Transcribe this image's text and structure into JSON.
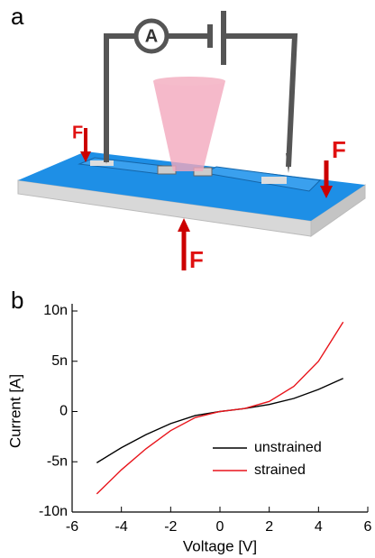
{
  "panel_labels": [
    "a",
    "b"
  ],
  "diagram": {
    "ammeter": "A",
    "forces": [
      "F",
      "F",
      "F"
    ]
  },
  "chart_data": {
    "type": "line",
    "x_label": "Voltage [V]",
    "y_label": "Current [A]",
    "x": [
      -5,
      -4,
      -3,
      -2,
      -1,
      0,
      1,
      2,
      3,
      4,
      5
    ],
    "series": [
      {
        "name": "unstrained",
        "color": "#000000",
        "values": [
          -5.1e-09,
          -3.6e-09,
          -2.3e-09,
          -1.2e-09,
          -4e-10,
          0,
          3e-10,
          7e-10,
          1.3e-09,
          2.2e-09,
          3.3e-09
        ]
      },
      {
        "name": "strained",
        "color": "#e8141b",
        "values": [
          -8.2e-09,
          -5.8e-09,
          -3.7e-09,
          -1.9e-09,
          -6e-10,
          0,
          3e-10,
          1e-09,
          2.5e-09,
          5e-09,
          8.9e-09
        ]
      }
    ],
    "xlim": [
      -6,
      6
    ],
    "xticks": [
      -6,
      -4,
      -2,
      0,
      2,
      4,
      6
    ],
    "ylim": [
      -1e-08,
      1e-08
    ],
    "yticks": [
      {
        "value": -1e-08,
        "label": "-10n"
      },
      {
        "value": -5e-09,
        "label": "-5n"
      },
      0,
      {
        "value": 5e-09,
        "label": "5n"
      },
      {
        "value": 1e-08,
        "label": "10n"
      }
    ],
    "legend": "lower right"
  }
}
